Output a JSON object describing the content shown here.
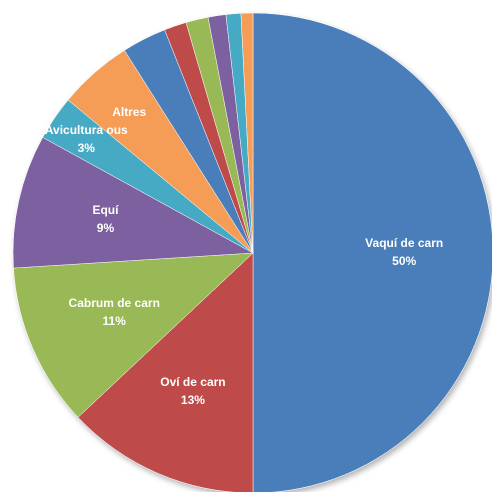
{
  "chart_data": {
    "type": "pie",
    "categories": [
      "Vaquí de carn",
      "Oví de carn",
      "Cabrum de carn",
      "Equí",
      "Avicultura ous",
      "Altres",
      null,
      null,
      null,
      null,
      null,
      null
    ],
    "values": [
      50,
      13,
      11,
      9,
      3,
      5,
      3,
      1.5,
      1.5,
      1.2,
      1,
      0.8
    ],
    "value_labels": [
      "50%",
      "13%",
      "11%",
      "9%",
      "3%",
      null,
      null,
      null,
      null,
      null,
      null,
      null
    ],
    "colors": [
      "#4a7ebb",
      "#be4b48",
      "#98b954",
      "#7d60a0",
      "#46aac4",
      "#f59d56",
      "#4a7ebb",
      "#be4b48",
      "#98b954",
      "#7d60a0",
      "#46aac4",
      "#f59d56"
    ]
  }
}
